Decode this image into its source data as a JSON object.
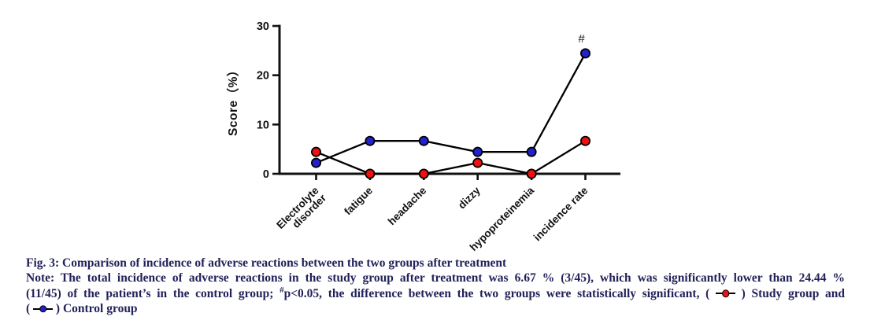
{
  "chart_data": {
    "type": "line",
    "title": "",
    "xlabel": "",
    "ylabel": "Score（%）",
    "ylim": [
      0,
      30
    ],
    "yticks": [
      0,
      10,
      20,
      30
    ],
    "grid": false,
    "legend_position": "described-in-caption-note",
    "categories": [
      "Electrolyte\ndisorder",
      "fatigue",
      "headache",
      "dizzy",
      "hypoproteinemia",
      "incidence rate"
    ],
    "series": [
      {
        "name": "Study group",
        "color": "#ee1111",
        "marker": "circle",
        "line_color": "#000000",
        "values": [
          4.44,
          0,
          0,
          2.22,
          0,
          6.67
        ]
      },
      {
        "name": "Control group",
        "color": "#2222cc",
        "marker": "circle",
        "line_color": "#000000",
        "values": [
          2.22,
          6.67,
          6.67,
          4.44,
          4.44,
          24.44
        ]
      }
    ],
    "annotations": [
      {
        "text": "#",
        "category_index": 5,
        "series_index": 1,
        "meaning": "p<0.05 vs study group"
      }
    ]
  },
  "caption": {
    "title": "Fig. 3: Comparison of incidence of adverse reactions between the two groups after treatment",
    "note_line1": "Note: The total incidence of adverse reactions in the study group after treatment was 6.67 % (3/45), which was significantly lower than 24.44 %",
    "note_line2_pre": "(11/45) of the patient’s in the control group; ",
    "note_line2_sup": "#",
    "note_line2_mid": "p<0.05, the difference between the two groups were statistically significant, ( ",
    "note_line2_post": " ) Study group and",
    "note_line3_pre": "( ",
    "note_line3_post": " ) Control group",
    "legend": [
      {
        "label": "Study group",
        "color": "#ee1111"
      },
      {
        "label": "Control group",
        "color": "#2222cc"
      }
    ]
  }
}
